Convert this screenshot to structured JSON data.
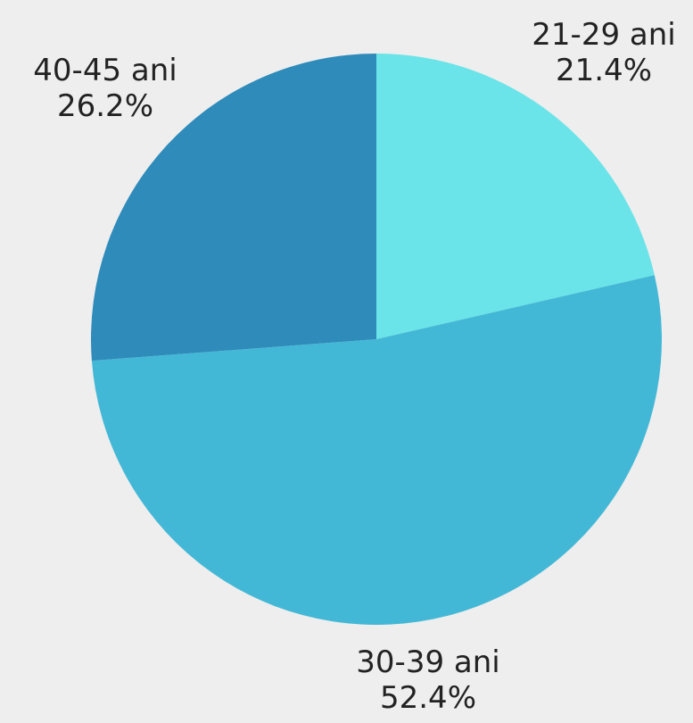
{
  "chart_data": {
    "type": "pie",
    "title": "",
    "start_angle_deg": 0,
    "direction": "clockwise",
    "slices": [
      {
        "label": "21-29 ani",
        "value": 21.4,
        "value_label": "21.4%",
        "color": "#6ae4e8"
      },
      {
        "label": "30-39 ani",
        "value": 52.4,
        "value_label": "52.4%",
        "color": "#43b8d6"
      },
      {
        "label": "40-45 ani",
        "value": 26.2,
        "value_label": "26.2%",
        "color": "#2e8bba"
      }
    ]
  },
  "page": {
    "background": "#eeeeee"
  }
}
